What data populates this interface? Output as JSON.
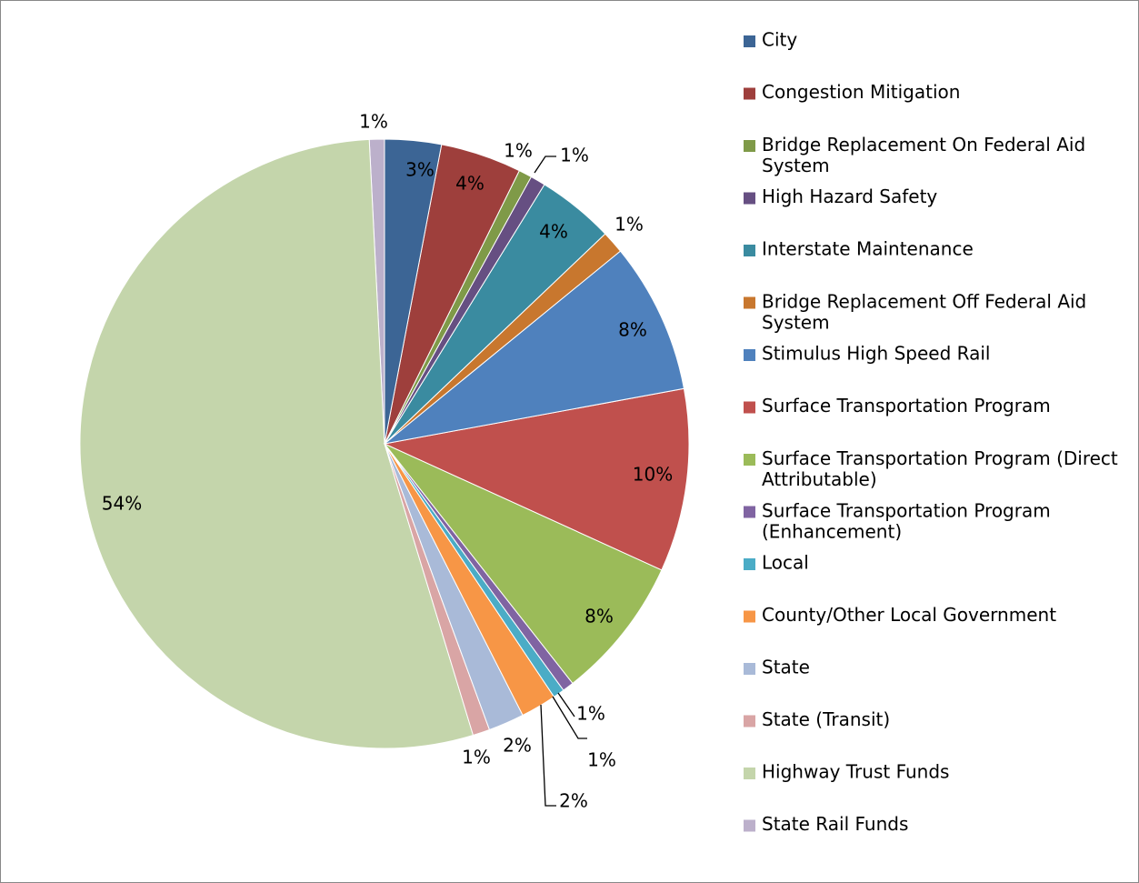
{
  "chart_data": {
    "type": "pie",
    "categories": [
      "City",
      "Congestion Mitigation",
      "Bridge Replacement On Federal Aid System",
      "High Hazard Safety",
      "Interstate Maintenance",
      "Bridge Replacement Off Federal Aid System",
      "Stimulus High Speed Rail",
      "Surface Transportation Program",
      "Surface Transportation Program (Direct Attributable)",
      "Surface Transportation Program (Enhancement)",
      "Local",
      "County/Other Local Government",
      "State",
      "State (Transit)",
      "Highway Trust Funds",
      "State Rail Funds"
    ],
    "values": [
      3.0,
      4.3,
      0.7,
      0.8,
      4.1,
      1.2,
      8.0,
      9.7,
      7.6,
      0.6,
      0.6,
      1.9,
      1.9,
      0.9,
      53.9,
      0.8
    ],
    "value_labels": [
      "3%",
      "4%",
      "1%",
      "1%",
      "4%",
      "1%",
      "8%",
      "10%",
      "8%",
      "1%",
      "1%",
      "2%",
      "2%",
      "1%",
      "54%",
      "1%"
    ],
    "colors": [
      "#3c6595",
      "#9e3f3c",
      "#7f9a48",
      "#664f82",
      "#3a8ba0",
      "#c8772e",
      "#4f81bd",
      "#c0504d",
      "#9bbb59",
      "#8064a2",
      "#4bacc6",
      "#f79646",
      "#a9bad8",
      "#d9a5a5",
      "#c4d5ab",
      "#bcb0cb"
    ],
    "legend": "right"
  }
}
